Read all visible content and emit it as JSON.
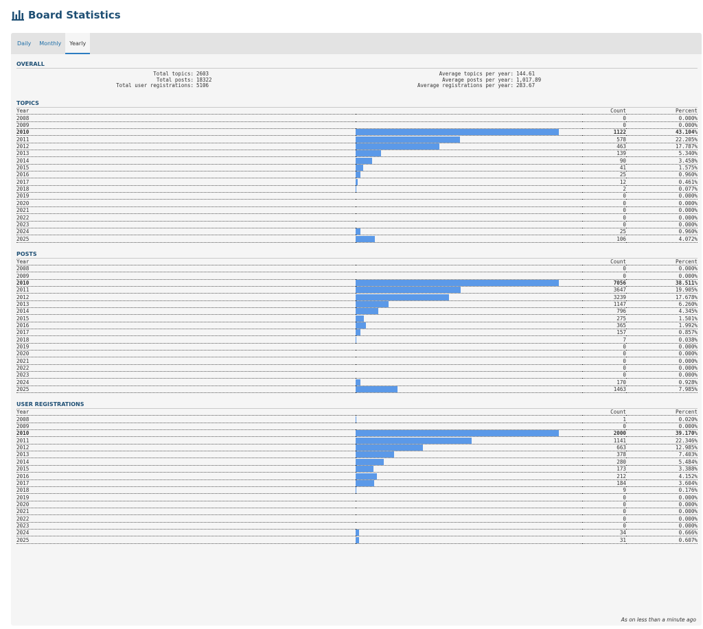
{
  "page": {
    "title": "Board Statistics",
    "icon": "bar-chart-icon"
  },
  "tabs": [
    {
      "label": "Daily",
      "active": false
    },
    {
      "label": "Monthly",
      "active": false
    },
    {
      "label": "Yearly",
      "active": true
    }
  ],
  "overall": {
    "heading": "OVERALL",
    "left": [
      {
        "label": "Total topics:",
        "value": "2603"
      },
      {
        "label": "Total posts:",
        "value": "18322"
      },
      {
        "label": "Total user registrations:",
        "value": "5106"
      }
    ],
    "right": [
      {
        "label": "Average topics per year:",
        "value": "144.61"
      },
      {
        "label": "Average posts per year:",
        "value": "1,017.89"
      },
      {
        "label": "Average registrations per year:",
        "value": "283.67"
      }
    ]
  },
  "columns": {
    "year": "Year",
    "count": "Count",
    "percent": "Percent"
  },
  "colors": {
    "bar": "#5b99e8",
    "heading": "#1e4f74",
    "tab_link": "#1f6fa8"
  },
  "sections": [
    {
      "id": "topics",
      "heading": "TOPICS",
      "max_year": "2010",
      "rows": [
        {
          "year": "2008",
          "count": "0",
          "percent": "0.000%"
        },
        {
          "year": "2009",
          "count": "0",
          "percent": "0.000%"
        },
        {
          "year": "2010",
          "count": "1122",
          "percent": "43.104%"
        },
        {
          "year": "2011",
          "count": "578",
          "percent": "22.205%"
        },
        {
          "year": "2012",
          "count": "463",
          "percent": "17.787%"
        },
        {
          "year": "2013",
          "count": "139",
          "percent": "5.340%"
        },
        {
          "year": "2014",
          "count": "90",
          "percent": "3.458%"
        },
        {
          "year": "2015",
          "count": "41",
          "percent": "1.575%"
        },
        {
          "year": "2016",
          "count": "25",
          "percent": "0.960%"
        },
        {
          "year": "2017",
          "count": "12",
          "percent": "0.461%"
        },
        {
          "year": "2018",
          "count": "2",
          "percent": "0.077%"
        },
        {
          "year": "2019",
          "count": "0",
          "percent": "0.000%"
        },
        {
          "year": "2020",
          "count": "0",
          "percent": "0.000%"
        },
        {
          "year": "2021",
          "count": "0",
          "percent": "0.000%"
        },
        {
          "year": "2022",
          "count": "0",
          "percent": "0.000%"
        },
        {
          "year": "2023",
          "count": "0",
          "percent": "0.000%"
        },
        {
          "year": "2024",
          "count": "25",
          "percent": "0.960%"
        },
        {
          "year": "2025",
          "count": "106",
          "percent": "4.072%"
        }
      ]
    },
    {
      "id": "posts",
      "heading": "POSTS",
      "max_year": "2010",
      "rows": [
        {
          "year": "2008",
          "count": "0",
          "percent": "0.000%"
        },
        {
          "year": "2009",
          "count": "0",
          "percent": "0.000%"
        },
        {
          "year": "2010",
          "count": "7056",
          "percent": "38.511%"
        },
        {
          "year": "2011",
          "count": "3647",
          "percent": "19.905%"
        },
        {
          "year": "2012",
          "count": "3239",
          "percent": "17.678%"
        },
        {
          "year": "2013",
          "count": "1147",
          "percent": "6.260%"
        },
        {
          "year": "2014",
          "count": "796",
          "percent": "4.345%"
        },
        {
          "year": "2015",
          "count": "275",
          "percent": "1.501%"
        },
        {
          "year": "2016",
          "count": "365",
          "percent": "1.992%"
        },
        {
          "year": "2017",
          "count": "157",
          "percent": "0.857%"
        },
        {
          "year": "2018",
          "count": "7",
          "percent": "0.038%"
        },
        {
          "year": "2019",
          "count": "0",
          "percent": "0.000%"
        },
        {
          "year": "2020",
          "count": "0",
          "percent": "0.000%"
        },
        {
          "year": "2021",
          "count": "0",
          "percent": "0.000%"
        },
        {
          "year": "2022",
          "count": "0",
          "percent": "0.000%"
        },
        {
          "year": "2023",
          "count": "0",
          "percent": "0.000%"
        },
        {
          "year": "2024",
          "count": "170",
          "percent": "0.928%"
        },
        {
          "year": "2025",
          "count": "1463",
          "percent": "7.985%"
        }
      ]
    },
    {
      "id": "user-registrations",
      "heading": "USER REGISTRATIONS",
      "max_year": "2010",
      "rows": [
        {
          "year": "2008",
          "count": "1",
          "percent": "0.020%"
        },
        {
          "year": "2009",
          "count": "0",
          "percent": "0.000%"
        },
        {
          "year": "2010",
          "count": "2000",
          "percent": "39.170%"
        },
        {
          "year": "2011",
          "count": "1141",
          "percent": "22.346%"
        },
        {
          "year": "2012",
          "count": "663",
          "percent": "12.985%"
        },
        {
          "year": "2013",
          "count": "378",
          "percent": "7.403%"
        },
        {
          "year": "2014",
          "count": "280",
          "percent": "5.484%"
        },
        {
          "year": "2015",
          "count": "173",
          "percent": "3.388%"
        },
        {
          "year": "2016",
          "count": "212",
          "percent": "4.152%"
        },
        {
          "year": "2017",
          "count": "184",
          "percent": "3.604%"
        },
        {
          "year": "2018",
          "count": "9",
          "percent": "0.176%"
        },
        {
          "year": "2019",
          "count": "0",
          "percent": "0.000%"
        },
        {
          "year": "2020",
          "count": "0",
          "percent": "0.000%"
        },
        {
          "year": "2021",
          "count": "0",
          "percent": "0.000%"
        },
        {
          "year": "2022",
          "count": "0",
          "percent": "0.000%"
        },
        {
          "year": "2023",
          "count": "0",
          "percent": "0.000%"
        },
        {
          "year": "2024",
          "count": "34",
          "percent": "0.666%"
        },
        {
          "year": "2025",
          "count": "31",
          "percent": "0.607%"
        }
      ]
    }
  ],
  "footer": {
    "note": "As on less than a minute ago"
  }
}
